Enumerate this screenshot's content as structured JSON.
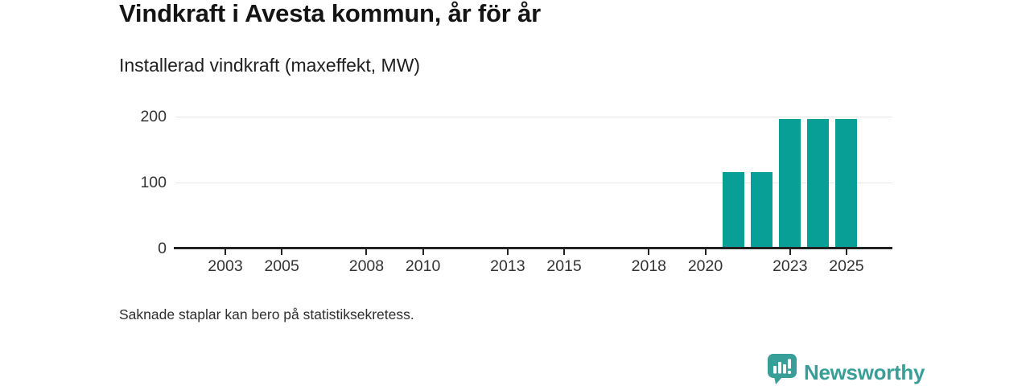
{
  "header": {
    "title": "Vindkraft i Avesta kommun, år för år",
    "subtitle": "Installerad vindkraft (maxeffekt, MW)"
  },
  "footer": {
    "note": "Saknade staplar kan bero på statistiksekretess."
  },
  "branding": {
    "logo_text": "Newsworthy",
    "logo_icon": "bar-chart-speech-bubble-icon"
  },
  "colors": {
    "bar": "#08a096",
    "axis": "#222222",
    "grid": "#e6e6e6",
    "text": "#333333",
    "title": "#141414",
    "subtitle": "#1f1f1f",
    "logo": "#389e98"
  },
  "chart_data": {
    "type": "bar",
    "title": "Vindkraft i Avesta kommun, år för år",
    "subtitle": "Installerad vindkraft (maxeffekt, MW)",
    "unit": "MW",
    "categories": [
      "2002",
      "2003",
      "2004",
      "2005",
      "2006",
      "2007",
      "2008",
      "2009",
      "2010",
      "2011",
      "2012",
      "2013",
      "2014",
      "2015",
      "2016",
      "2017",
      "2018",
      "2019",
      "2020",
      "2021",
      "2022",
      "2023",
      "2024",
      "2025",
      "2026"
    ],
    "values": [
      null,
      null,
      null,
      null,
      null,
      null,
      null,
      null,
      null,
      null,
      null,
      null,
      null,
      null,
      null,
      null,
      null,
      null,
      null,
      116,
      116,
      196,
      196,
      196,
      null
    ],
    "x_tick_labels": [
      "2003",
      "2005",
      "2008",
      "2010",
      "2013",
      "2015",
      "2018",
      "2020",
      "2023",
      "2025"
    ],
    "y_ticks": [
      0,
      100,
      200
    ],
    "ylim": [
      0,
      200
    ],
    "grid": "horizontal",
    "legend": "none",
    "annotation": "Saknade staplar kan bero på statistiksekretess."
  }
}
